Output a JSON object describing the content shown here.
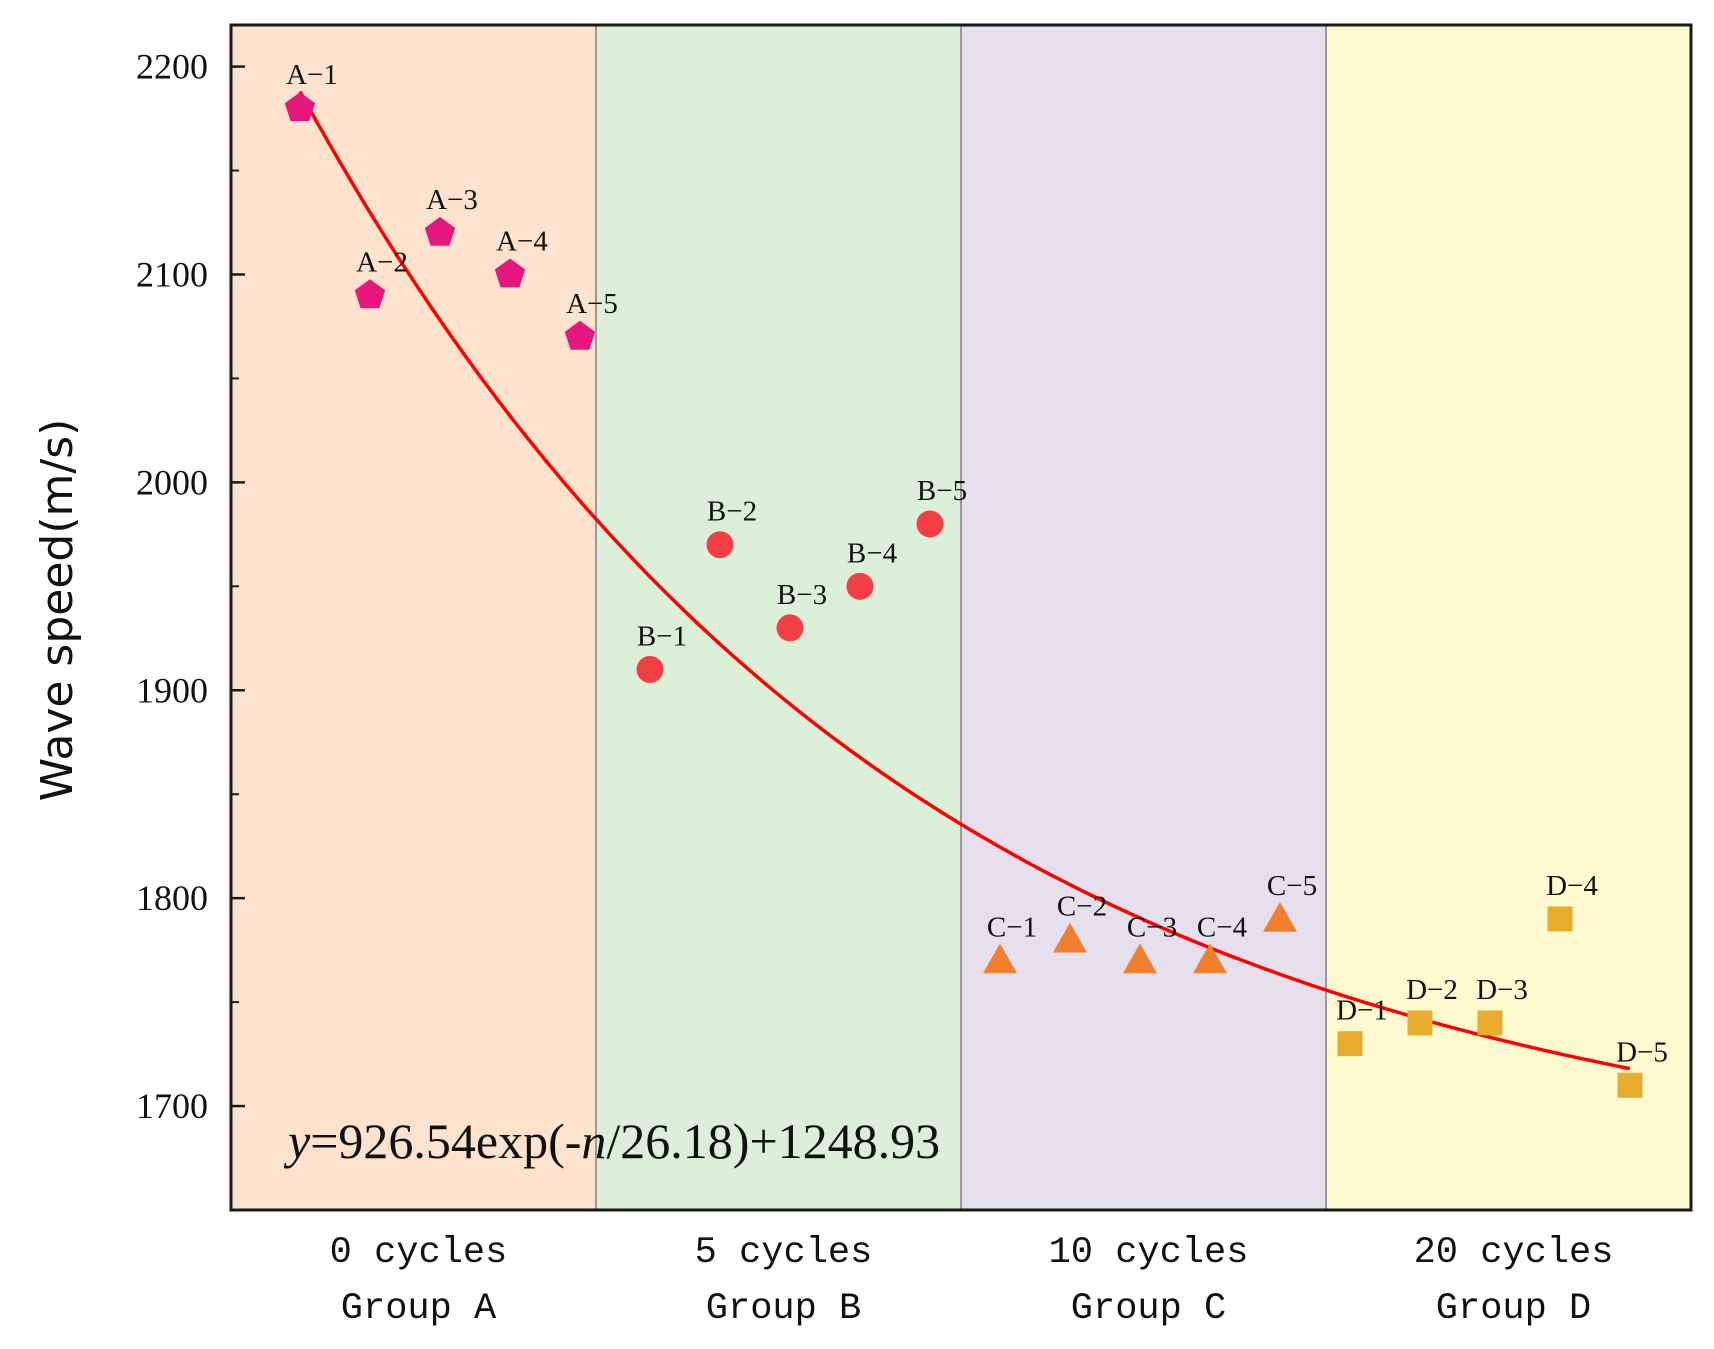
{
  "chart_data": {
    "type": "scatter",
    "title": "",
    "xlabel": "",
    "ylabel": "Wave speed(m/s)",
    "ylim": [
      1650,
      2220
    ],
    "yticks": [
      1700,
      1800,
      1900,
      2000,
      2100,
      2200
    ],
    "grid": false,
    "legend": "none",
    "groups": [
      {
        "id": "A",
        "line1": "0 cycles",
        "line2": "Group A",
        "bg": "#fde3cd",
        "marker": "pentagon",
        "color": "#e6167f",
        "points": [
          {
            "label": "A−1",
            "value": 2180
          },
          {
            "label": "A−2",
            "value": 2090
          },
          {
            "label": "A−3",
            "value": 2120
          },
          {
            "label": "A−4",
            "value": 2100
          },
          {
            "label": "A−5",
            "value": 2070
          }
        ]
      },
      {
        "id": "B",
        "line1": "5 cycles",
        "line2": "Group B",
        "bg": "#dcefd9",
        "marker": "circle",
        "color": "#f23e45",
        "points": [
          {
            "label": "B−1",
            "value": 1910
          },
          {
            "label": "B−2",
            "value": 1970
          },
          {
            "label": "B−3",
            "value": 1930
          },
          {
            "label": "B−4",
            "value": 1950
          },
          {
            "label": "B−5",
            "value": 1980
          }
        ]
      },
      {
        "id": "C",
        "line1": "10 cycles",
        "line2": "Group C",
        "bg": "#e5dfee",
        "marker": "triangle",
        "color": "#f0802d",
        "points": [
          {
            "label": "C−1",
            "value": 1770
          },
          {
            "label": "C−2",
            "value": 1780
          },
          {
            "label": "C−3",
            "value": 1770
          },
          {
            "label": "C−4",
            "value": 1770
          },
          {
            "label": "C−5",
            "value": 1790
          }
        ]
      },
      {
        "id": "D",
        "line1": "20 cycles",
        "line2": "Group D",
        "bg": "#fdfad0",
        "marker": "square",
        "color": "#e8ac2e",
        "points": [
          {
            "label": "D−1",
            "value": 1730
          },
          {
            "label": "D−2",
            "value": 1740
          },
          {
            "label": "D−3",
            "value": 1740
          },
          {
            "label": "D−4",
            "value": 1790
          },
          {
            "label": "D−5",
            "value": 1710
          }
        ]
      }
    ],
    "fit": {
      "equation_parts": [
        "y",
        "=926.54exp(-",
        "n",
        "/26.18)+1248.93"
      ],
      "color": "#ff0000",
      "start_value": 2188,
      "end_value": 1718
    }
  }
}
